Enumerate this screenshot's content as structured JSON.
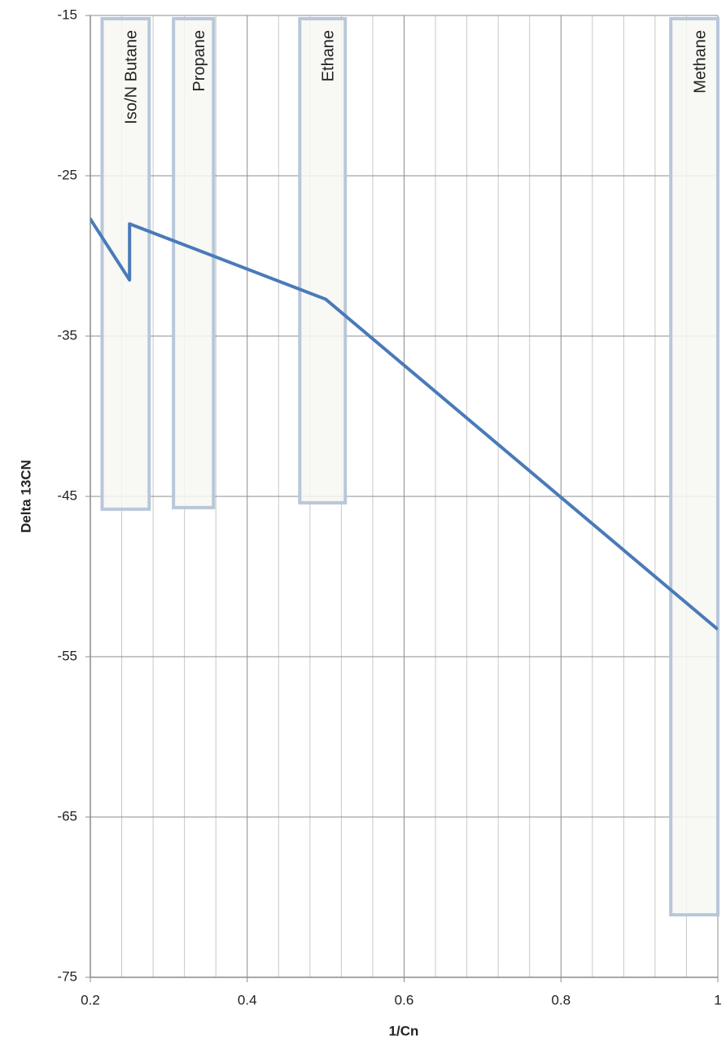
{
  "chart_data": {
    "type": "line",
    "x_label": "1/Cn",
    "y_label": "Delta 13CN",
    "xlim": [
      0.2,
      1
    ],
    "ylim": [
      -75,
      -15
    ],
    "xticks": [
      0.2,
      0.4,
      0.6,
      0.8,
      1
    ],
    "yticks": [
      -75,
      -65,
      -55,
      -45,
      -35,
      -25,
      -15
    ],
    "x_minor_grid": [
      0.24,
      0.28,
      0.32,
      0.36,
      0.44,
      0.48,
      0.52,
      0.56,
      0.64,
      0.68,
      0.72,
      0.76,
      0.84,
      0.88,
      0.92,
      0.96
    ],
    "grid": true,
    "series": [
      {
        "name": "Delta 13CN",
        "color": "#4a7ab8",
        "x": [
          0.1667,
          0.2,
          0.25,
          0.25,
          0.5,
          1.0
        ],
        "values": [
          -29.5,
          -27.7,
          -31.5,
          -28.0,
          -32.7,
          -53.3
        ]
      }
    ],
    "bands": [
      {
        "label": "Iso/N Butane",
        "x0": 0.215,
        "x1": 0.275,
        "y0": -45.8,
        "y1": -15.2
      },
      {
        "label": "Propane",
        "x0": 0.306,
        "x1": 0.357,
        "y0": -45.7,
        "y1": -15.2
      },
      {
        "label": "Ethane",
        "x0": 0.467,
        "x1": 0.525,
        "y0": -45.4,
        "y1": -15.2
      },
      {
        "label": "Methane",
        "x0": 0.94,
        "x1": 1.0,
        "y0": -71.1,
        "y1": -15.2
      }
    ],
    "band_fill": "#f7f7f2",
    "band_stroke": "#b8c7da"
  }
}
